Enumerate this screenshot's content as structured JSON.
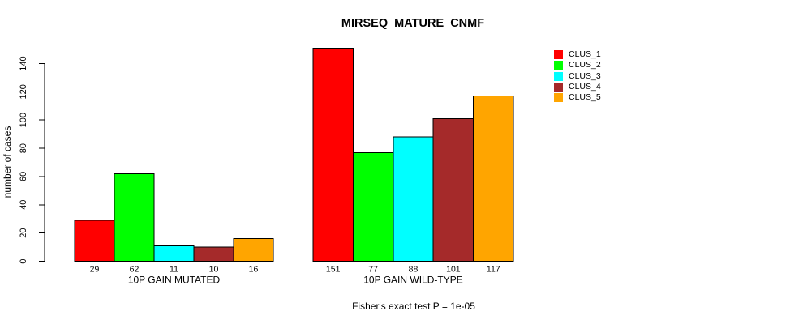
{
  "chart_data": {
    "type": "bar",
    "title": "MIRSEQ_MATURE_CNMF",
    "ylabel": "number of cases",
    "xlabel": "",
    "annotation": "Fisher's exact test P = 1e-05",
    "ylim": [
      0,
      140
    ],
    "yticks": [
      0,
      20,
      40,
      60,
      80,
      100,
      120,
      140
    ],
    "grid": false,
    "legend_position": "top-right",
    "bar_border_color": "#000000",
    "categories": [
      "10P GAIN MUTATED",
      "10P GAIN WILD-TYPE"
    ],
    "series": [
      {
        "name": "CLUS_1",
        "color": "#FF0000",
        "values": [
          29,
          151
        ]
      },
      {
        "name": "CLUS_2",
        "color": "#00FF00",
        "values": [
          62,
          77
        ]
      },
      {
        "name": "CLUS_3",
        "color": "#00FFFF",
        "values": [
          11,
          88
        ]
      },
      {
        "name": "CLUS_4",
        "color": "#A52A2A",
        "values": [
          10,
          101
        ]
      },
      {
        "name": "CLUS_5",
        "color": "#FFA500",
        "values": [
          16,
          117
        ]
      }
    ]
  }
}
